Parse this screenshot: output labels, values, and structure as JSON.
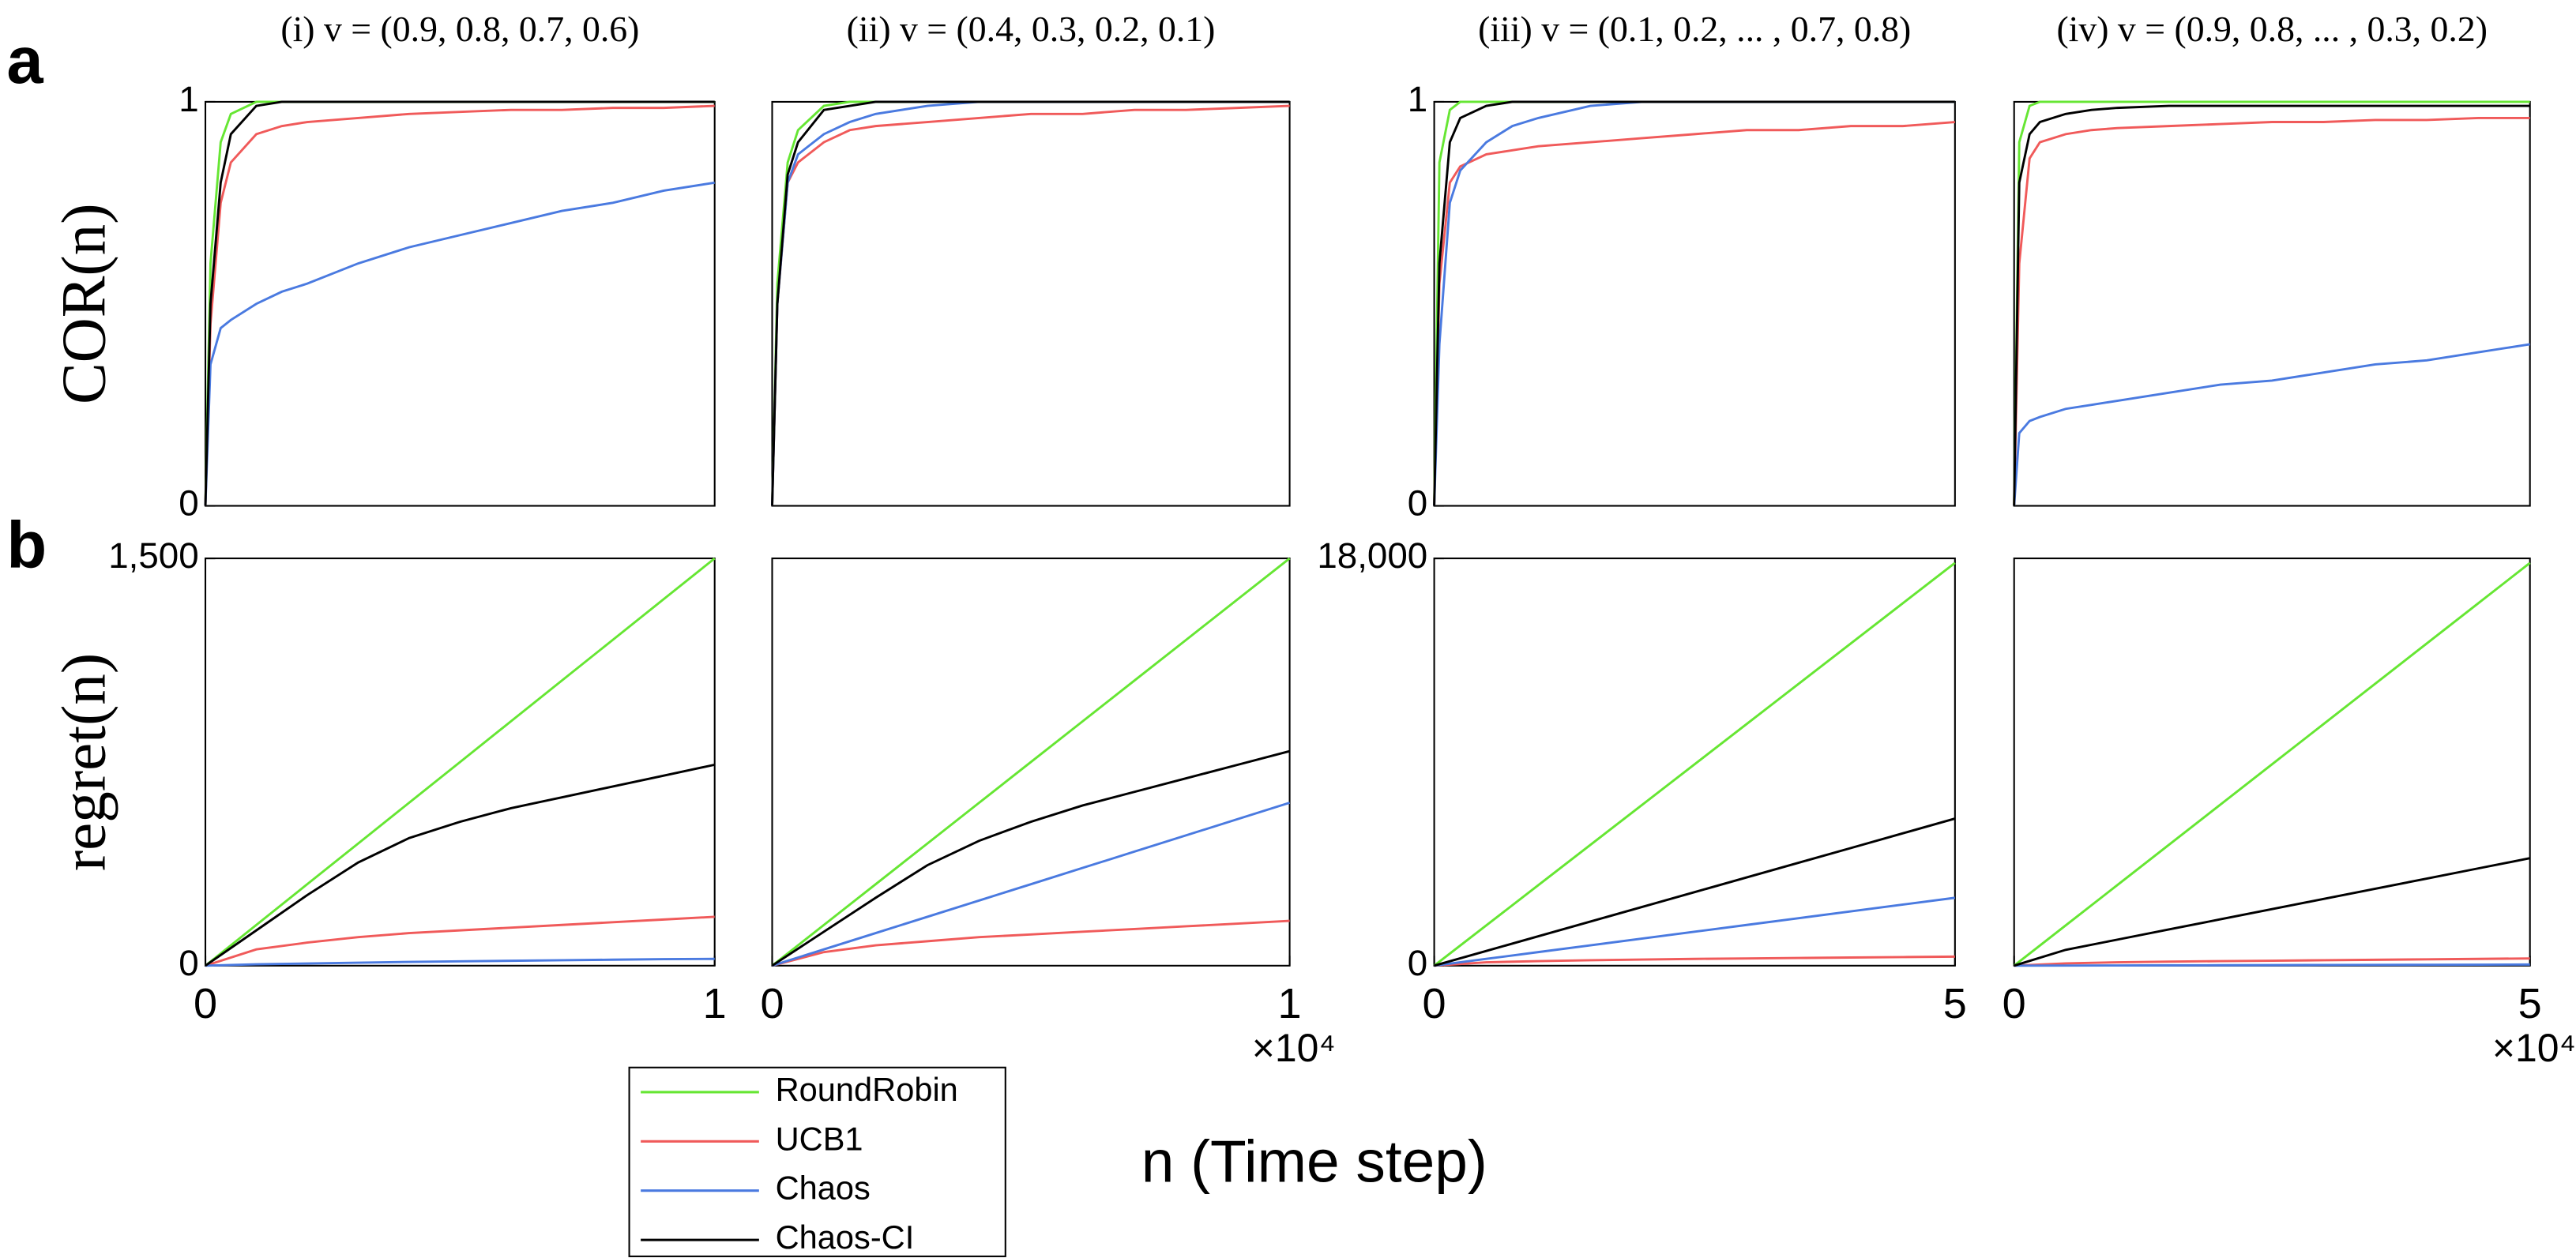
{
  "figure": {
    "panel_labels": [
      "a",
      "b"
    ],
    "x_label": "n (Time step)"
  },
  "chart_data": [
    {
      "type": "line",
      "title": "(i) v = (0.9, 0.8, 0.7, 0.6)",
      "ylabel": "COR(n)",
      "x": [
        0,
        0.01,
        0.03,
        0.05,
        0.1,
        0.15,
        0.2,
        0.3,
        0.4,
        0.5,
        0.6,
        0.7,
        0.8,
        0.9,
        1.0
      ],
      "xlim": [
        0,
        1
      ],
      "ylim": [
        0,
        1
      ],
      "yticks": [
        0,
        1
      ],
      "series": [
        {
          "name": "RoundRobin",
          "color": "#66e633",
          "values": [
            0,
            0.6,
            0.9,
            0.97,
            1,
            1,
            1,
            1,
            1,
            1,
            1,
            1,
            1,
            1,
            1
          ]
        },
        {
          "name": "UCB1",
          "color": "#f05a5a",
          "values": [
            0,
            0.45,
            0.75,
            0.85,
            0.92,
            0.94,
            0.95,
            0.96,
            0.97,
            0.975,
            0.98,
            0.98,
            0.985,
            0.985,
            0.99
          ]
        },
        {
          "name": "Chaos",
          "color": "#4a7ae0",
          "values": [
            0,
            0.35,
            0.44,
            0.46,
            0.5,
            0.53,
            0.55,
            0.6,
            0.64,
            0.67,
            0.7,
            0.73,
            0.75,
            0.78,
            0.8
          ]
        },
        {
          "name": "Chaos-CI",
          "color": "#000000",
          "values": [
            0,
            0.5,
            0.8,
            0.92,
            0.99,
            1,
            1,
            1,
            1,
            1,
            1,
            1,
            1,
            1,
            1
          ]
        }
      ]
    },
    {
      "type": "line",
      "title": "(ii) v = (0.4, 0.3, 0.2, 0.1)",
      "x": [
        0,
        0.01,
        0.03,
        0.05,
        0.1,
        0.15,
        0.2,
        0.3,
        0.4,
        0.5,
        0.6,
        0.7,
        0.8,
        0.9,
        1.0
      ],
      "xlim": [
        0,
        1
      ],
      "ylim": [
        0,
        1
      ],
      "series": [
        {
          "color": "#66e633",
          "values": [
            0,
            0.55,
            0.85,
            0.93,
            0.99,
            1,
            1,
            1,
            1,
            1,
            1,
            1,
            1,
            1,
            1
          ]
        },
        {
          "color": "#f05a5a",
          "values": [
            0,
            0.5,
            0.8,
            0.85,
            0.9,
            0.93,
            0.94,
            0.95,
            0.96,
            0.97,
            0.97,
            0.98,
            0.98,
            0.985,
            0.99
          ]
        },
        {
          "color": "#4a7ae0",
          "values": [
            0,
            0.5,
            0.8,
            0.87,
            0.92,
            0.95,
            0.97,
            0.99,
            1,
            1,
            1,
            1,
            1,
            1,
            1
          ]
        },
        {
          "color": "#000000",
          "values": [
            0,
            0.5,
            0.82,
            0.9,
            0.98,
            0.99,
            1,
            1,
            1,
            1,
            1,
            1,
            1,
            1,
            1
          ]
        }
      ]
    },
    {
      "type": "line",
      "title": "(iii) v = (0.1, 0.2, ... , 0.7, 0.8)",
      "x": [
        0,
        0.05,
        0.15,
        0.25,
        0.5,
        0.75,
        1,
        1.5,
        2,
        2.5,
        3,
        3.5,
        4,
        4.5,
        5
      ],
      "xlim": [
        0,
        5
      ],
      "ylim": [
        0,
        1
      ],
      "yticks": [
        0,
        1
      ],
      "series": [
        {
          "color": "#66e633",
          "values": [
            0,
            0.85,
            0.98,
            1,
            1,
            1,
            1,
            1,
            1,
            1,
            1,
            1,
            1,
            1,
            1
          ]
        },
        {
          "color": "#f05a5a",
          "values": [
            0,
            0.55,
            0.8,
            0.84,
            0.87,
            0.88,
            0.89,
            0.9,
            0.91,
            0.92,
            0.93,
            0.93,
            0.94,
            0.94,
            0.95
          ]
        },
        {
          "color": "#4a7ae0",
          "values": [
            0,
            0.4,
            0.75,
            0.83,
            0.9,
            0.94,
            0.96,
            0.99,
            1,
            1,
            1,
            1,
            1,
            1,
            1
          ]
        },
        {
          "color": "#000000",
          "values": [
            0,
            0.6,
            0.9,
            0.96,
            0.99,
            1,
            1,
            1,
            1,
            1,
            1,
            1,
            1,
            1,
            1
          ]
        }
      ]
    },
    {
      "type": "line",
      "title": "(iv) v = (0.9, 0.8, ... , 0.3, 0.2)",
      "x": [
        0,
        0.05,
        0.15,
        0.25,
        0.5,
        0.75,
        1,
        1.5,
        2,
        2.5,
        3,
        3.5,
        4,
        4.5,
        5
      ],
      "xlim": [
        0,
        5
      ],
      "ylim": [
        0,
        1
      ],
      "series": [
        {
          "color": "#66e633",
          "values": [
            0,
            0.9,
            0.99,
            1,
            1,
            1,
            1,
            1,
            1,
            1,
            1,
            1,
            1,
            1,
            1
          ]
        },
        {
          "color": "#f05a5a",
          "values": [
            0,
            0.6,
            0.86,
            0.9,
            0.92,
            0.93,
            0.935,
            0.94,
            0.945,
            0.95,
            0.95,
            0.955,
            0.955,
            0.96,
            0.96
          ]
        },
        {
          "color": "#4a7ae0",
          "values": [
            0,
            0.18,
            0.21,
            0.22,
            0.24,
            0.25,
            0.26,
            0.28,
            0.3,
            0.31,
            0.33,
            0.35,
            0.36,
            0.38,
            0.4
          ]
        },
        {
          "color": "#000000",
          "values": [
            0,
            0.8,
            0.92,
            0.95,
            0.97,
            0.98,
            0.985,
            0.99,
            0.99,
            0.99,
            0.99,
            0.99,
            0.99,
            0.99,
            0.99
          ]
        }
      ]
    },
    {
      "type": "line",
      "ylabel": "regret(n)",
      "x": [
        0,
        0.1,
        0.2,
        0.3,
        0.4,
        0.5,
        0.6,
        0.7,
        0.8,
        0.9,
        1.0
      ],
      "xlim": [
        0,
        1
      ],
      "xticks": [
        0,
        1
      ],
      "ylim": [
        0,
        1500
      ],
      "yticks": [
        0,
        {
          "value": 1500,
          "label": "1,500"
        }
      ],
      "series": [
        {
          "color": "#66e633",
          "values": [
            0,
            150,
            300,
            450,
            600,
            750,
            900,
            1050,
            1200,
            1350,
            1500
          ]
        },
        {
          "color": "#f05a5a",
          "values": [
            0,
            60,
            85,
            105,
            120,
            130,
            140,
            150,
            160,
            170,
            180
          ]
        },
        {
          "color": "#4a7ae0",
          "values": [
            0,
            5,
            8,
            11,
            14,
            16,
            18,
            20,
            22,
            24,
            25
          ]
        },
        {
          "color": "#000000",
          "values": [
            0,
            130,
            260,
            380,
            470,
            530,
            580,
            620,
            660,
            700,
            740
          ]
        }
      ]
    },
    {
      "type": "line",
      "x_multiplier": "×10⁴",
      "x": [
        0,
        0.1,
        0.2,
        0.3,
        0.4,
        0.5,
        0.6,
        0.7,
        0.8,
        0.9,
        1.0
      ],
      "xlim": [
        0,
        1
      ],
      "xticks": [
        0,
        1
      ],
      "ylim": [
        0,
        1500
      ],
      "series": [
        {
          "color": "#66e633",
          "values": [
            0,
            150,
            300,
            450,
            600,
            750,
            900,
            1050,
            1200,
            1350,
            1500
          ]
        },
        {
          "color": "#f05a5a",
          "values": [
            0,
            50,
            75,
            90,
            105,
            115,
            125,
            135,
            145,
            155,
            165
          ]
        },
        {
          "color": "#4a7ae0",
          "values": [
            0,
            60,
            120,
            180,
            240,
            300,
            360,
            420,
            480,
            540,
            600
          ]
        },
        {
          "color": "#000000",
          "values": [
            0,
            125,
            250,
            370,
            460,
            530,
            590,
            640,
            690,
            740,
            790
          ]
        }
      ]
    },
    {
      "type": "line",
      "x": [
        0,
        0.5,
        1,
        1.5,
        2,
        2.5,
        3,
        3.5,
        4,
        4.5,
        5
      ],
      "xlim": [
        0,
        5
      ],
      "xticks": [
        0,
        5
      ],
      "ylim": [
        0,
        18000
      ],
      "yticks": [
        0,
        {
          "value": 18000,
          "label": "18,000"
        }
      ],
      "series": [
        {
          "color": "#66e633",
          "values": [
            0,
            1780,
            3560,
            5340,
            7120,
            8900,
            10680,
            12460,
            14240,
            16020,
            17800
          ]
        },
        {
          "color": "#f05a5a",
          "values": [
            0,
            150,
            200,
            240,
            270,
            300,
            320,
            340,
            360,
            380,
            400
          ]
        },
        {
          "color": "#4a7ae0",
          "values": [
            0,
            300,
            600,
            900,
            1200,
            1500,
            1800,
            2100,
            2400,
            2700,
            3000
          ]
        },
        {
          "color": "#000000",
          "values": [
            0,
            650,
            1300,
            1950,
            2600,
            3250,
            3900,
            4550,
            5200,
            5850,
            6500
          ]
        }
      ]
    },
    {
      "type": "line",
      "x_multiplier": "×10⁴",
      "x": [
        0,
        0.5,
        1,
        1.5,
        2,
        2.5,
        3,
        3.5,
        4,
        4.5,
        5
      ],
      "xlim": [
        0,
        5
      ],
      "xticks": [
        0,
        5
      ],
      "ylim": [
        0,
        18000
      ],
      "series": [
        {
          "color": "#66e633",
          "values": [
            0,
            1780,
            3560,
            5340,
            7120,
            8900,
            10680,
            12460,
            14240,
            16020,
            17800
          ]
        },
        {
          "color": "#f05a5a",
          "values": [
            0,
            100,
            150,
            180,
            200,
            220,
            240,
            260,
            280,
            300,
            320
          ]
        },
        {
          "color": "#4a7ae0",
          "values": [
            0,
            5,
            10,
            15,
            20,
            25,
            30,
            35,
            40,
            45,
            50
          ]
        },
        {
          "color": "#000000",
          "values": [
            0,
            700,
            1150,
            1600,
            2050,
            2500,
            2950,
            3400,
            3850,
            4300,
            4750
          ]
        }
      ]
    }
  ]
}
